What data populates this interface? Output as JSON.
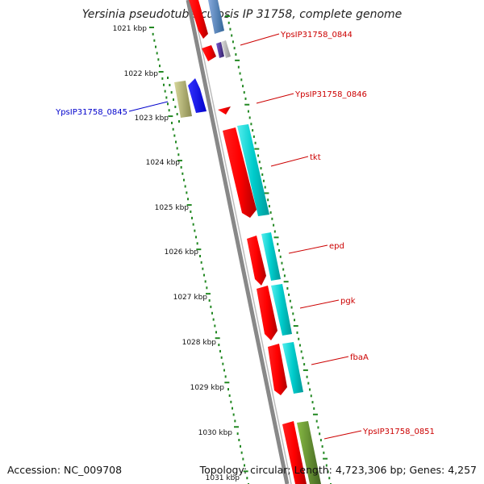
{
  "title": "Yersinia pseudotuberculosis IP 31758, complete genome",
  "footer": {
    "accession": "Accession: NC_009708",
    "stats": "Topology: circular; Length: 4,723,306 bp; Genes: 4,257"
  },
  "scale_labels": [
    "1021 kbp",
    "1022 kbp",
    "1023 kbp",
    "1024 kbp",
    "1025 kbp",
    "1026 kbp",
    "1027 kbp",
    "1028 kbp",
    "1029 kbp",
    "1030 kbp",
    "1031 kbp"
  ],
  "gene_labels": [
    {
      "text": "YpsIP31758_0844",
      "color": "#cc0000"
    },
    {
      "text": "YpsIP31758_0846",
      "color": "#cc0000"
    },
    {
      "text": "tkt",
      "color": "#cc0000"
    },
    {
      "text": "epd",
      "color": "#cc0000"
    },
    {
      "text": "pgk",
      "color": "#cc0000"
    },
    {
      "text": "fbaA",
      "color": "#cc0000"
    },
    {
      "text": "YpsIP31758_0851",
      "color": "#cc0000"
    },
    {
      "text": "YpsIP31758_0845",
      "color": "#0000cc"
    }
  ],
  "colors": {
    "gene_red": "#ff0000",
    "gene_cyan": "#00cccc",
    "gene_blue": "#0000ff",
    "gene_olive": "#b8b870",
    "gene_green": "#669933",
    "gene_steel": "#5588bb",
    "gene_purple": "#553399",
    "scale_dots": "#228822",
    "backbone": "#888888"
  }
}
